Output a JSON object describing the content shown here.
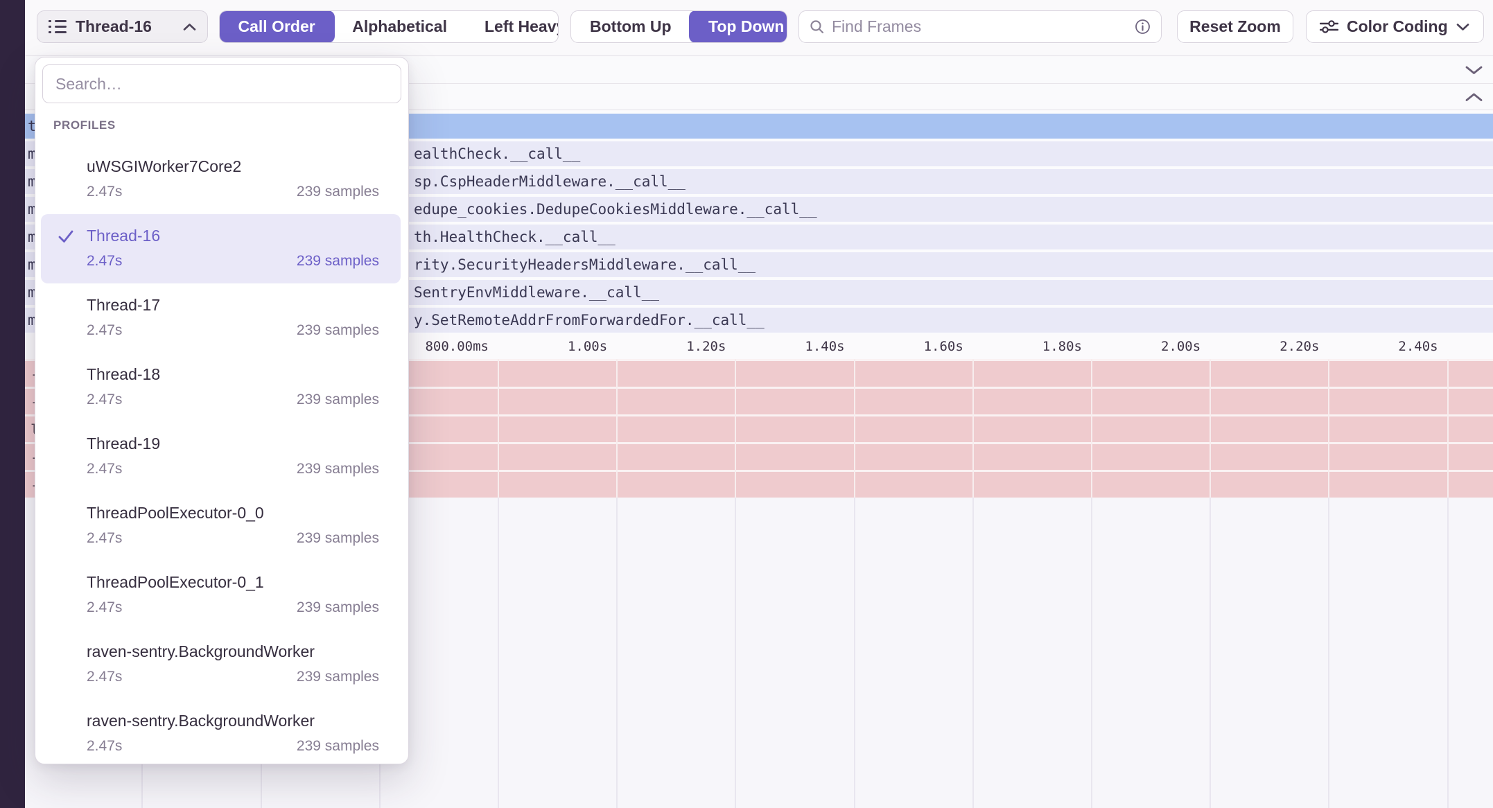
{
  "toolbar": {
    "thread_selector_label": "Thread-16",
    "sort_options": [
      "Call Order",
      "Alphabetical",
      "Left Heavy"
    ],
    "sort_selected": "Call Order",
    "direction_options": [
      "Bottom Up",
      "Top Down"
    ],
    "direction_selected": "Top Down",
    "find_frames_placeholder": "Find Frames",
    "reset_zoom_label": "Reset Zoom",
    "color_coding_label": "Color Coding"
  },
  "dropdown": {
    "search_placeholder": "Search…",
    "section_label": "PROFILES",
    "items": [
      {
        "name": "uWSGIWorker7Core2",
        "duration": "2.47s",
        "samples": "239 samples",
        "selected": false
      },
      {
        "name": "Thread-16",
        "duration": "2.47s",
        "samples": "239 samples",
        "selected": true
      },
      {
        "name": "Thread-17",
        "duration": "2.47s",
        "samples": "239 samples",
        "selected": false
      },
      {
        "name": "Thread-18",
        "duration": "2.47s",
        "samples": "239 samples",
        "selected": false
      },
      {
        "name": "Thread-19",
        "duration": "2.47s",
        "samples": "239 samples",
        "selected": false
      },
      {
        "name": "ThreadPoolExecutor-0_0",
        "duration": "2.47s",
        "samples": "239 samples",
        "selected": false
      },
      {
        "name": "ThreadPoolExecutor-0_1",
        "duration": "2.47s",
        "samples": "239 samples",
        "selected": false
      },
      {
        "name": "raven-sentry.BackgroundWorker",
        "duration": "2.47s",
        "samples": "239 samples",
        "selected": false
      },
      {
        "name": "raven-sentry.BackgroundWorker",
        "duration": "2.47s",
        "samples": "239 samples",
        "selected": false
      }
    ]
  },
  "flamegraph": {
    "rows": [
      {
        "left_fragment": "t",
        "right_fragment": "",
        "selected": true
      },
      {
        "left_fragment": "m",
        "right_fragment": "ealthCheck.__call__",
        "selected": false
      },
      {
        "left_fragment": "m",
        "right_fragment": "sp.CspHeaderMiddleware.__call__",
        "selected": false
      },
      {
        "left_fragment": "m",
        "right_fragment": "edupe_cookies.DedupeCookiesMiddleware.__call__",
        "selected": false
      },
      {
        "left_fragment": "m",
        "right_fragment": "th.HealthCheck.__call__",
        "selected": false
      },
      {
        "left_fragment": "m",
        "right_fragment": "rity.SecurityHeadersMiddleware.__call__",
        "selected": false
      },
      {
        "left_fragment": "m",
        "right_fragment": "SentryEnvMiddleware.__call__",
        "selected": false
      },
      {
        "left_fragment": "m",
        "right_fragment": "y.SetRemoteAddrFromForwardedFor.__call__",
        "selected": false
      }
    ],
    "axis_ticks": [
      "800.00ms",
      "1.00s",
      "1.20s",
      "1.40s",
      "1.60s",
      "1.80s",
      "2.00s",
      "2.20s",
      "2.40s"
    ],
    "highlight_rows": [
      {
        "left_fragment": "-"
      },
      {
        "left_fragment": "-"
      },
      {
        "left_fragment": "l"
      },
      {
        "left_fragment": "-"
      },
      {
        "left_fragment": "-"
      }
    ]
  },
  "colors": {
    "accent_purple": "#6C5FC7",
    "selected_row_blue": "#A7C2F1",
    "frame_row_lavender": "#E9E9F7",
    "highlight_row_pink": "#EFCBCE",
    "sidebar_dark": "#30243F",
    "toolbar_text": "#3E3446"
  }
}
